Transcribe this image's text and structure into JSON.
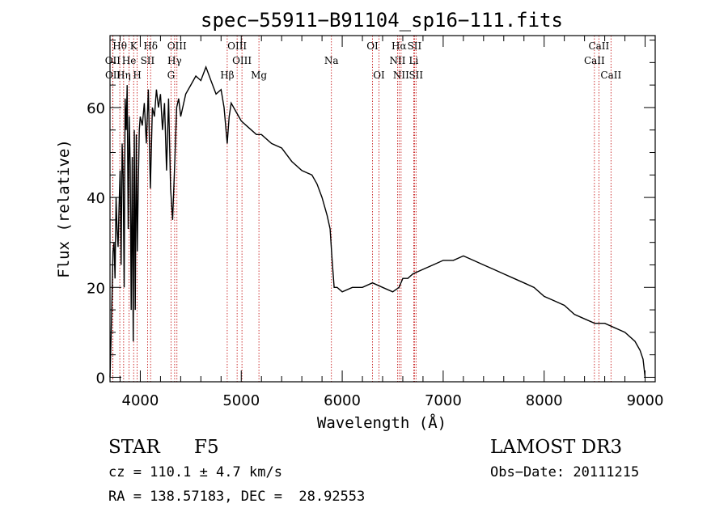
{
  "chart_data": {
    "type": "line",
    "title": "spec−55911−B91104_sp16−111.fits",
    "xlabel": "Wavelength (Å)",
    "ylabel": "Flux (relative)",
    "xlim": [
      3700,
      9100
    ],
    "ylim": [
      -1,
      76
    ],
    "x_ticks": [
      4000,
      5000,
      6000,
      7000,
      8000,
      9000
    ],
    "y_ticks": [
      0,
      20,
      40,
      60
    ],
    "line_color": "#c00000",
    "spectrum_color": "#000000",
    "series": [
      {
        "name": "spectrum",
        "x": [
          3700,
          3710,
          3720,
          3730,
          3740,
          3750,
          3760,
          3770,
          3780,
          3790,
          3800,
          3810,
          3820,
          3830,
          3840,
          3850,
          3860,
          3870,
          3880,
          3890,
          3900,
          3910,
          3920,
          3930,
          3940,
          3950,
          3960,
          3970,
          3980,
          3990,
          4000,
          4020,
          4040,
          4060,
          4080,
          4100,
          4120,
          4140,
          4160,
          4180,
          4200,
          4220,
          4240,
          4260,
          4280,
          4300,
          4320,
          4340,
          4360,
          4380,
          4400,
          4450,
          4500,
          4550,
          4600,
          4650,
          4700,
          4750,
          4800,
          4830,
          4861,
          4880,
          4900,
          4950,
          5000,
          5050,
          5100,
          5150,
          5200,
          5300,
          5400,
          5500,
          5600,
          5700,
          5750,
          5800,
          5850,
          5880,
          5900,
          5920,
          5950,
          6000,
          6100,
          6200,
          6300,
          6400,
          6500,
          6563,
          6600,
          6650,
          6700,
          6800,
          6900,
          7000,
          7100,
          7200,
          7300,
          7400,
          7500,
          7600,
          7700,
          7800,
          7900,
          8000,
          8100,
          8200,
          8300,
          8400,
          8500,
          8600,
          8700,
          8800,
          8900,
          8950,
          8980,
          9000
        ],
        "y": [
          0,
          8,
          18,
          28,
          30,
          22,
          40,
          33,
          29,
          38,
          46,
          25,
          52,
          45,
          20,
          62,
          55,
          65,
          33,
          58,
          47,
          15,
          49,
          8,
          55,
          15,
          54,
          28,
          42,
          55,
          58,
          56,
          61,
          52,
          64,
          42,
          60,
          58,
          64,
          60,
          63,
          55,
          61,
          46,
          62,
          42,
          35,
          47,
          60,
          62,
          58,
          63,
          65,
          67,
          66,
          69,
          66,
          63,
          64,
          60,
          52,
          58,
          61,
          59,
          57,
          56,
          55,
          54,
          54,
          52,
          51,
          48,
          46,
          45,
          43,
          40,
          36,
          33,
          26,
          20,
          20,
          19,
          20,
          20,
          21,
          20,
          19,
          20,
          22,
          22,
          23,
          24,
          25,
          26,
          26,
          27,
          26,
          25,
          24,
          23,
          22,
          21,
          20,
          18,
          17,
          16,
          14,
          13,
          12,
          12,
          11,
          10,
          8,
          6,
          4,
          0
        ]
      }
    ],
    "spectral_lines": [
      {
        "label": "Hθ",
        "x": 3797,
        "row": 0
      },
      {
        "label": "OII",
        "x": 3727,
        "row": 1
      },
      {
        "label": "OII",
        "x": 3729,
        "row": 2
      },
      {
        "label": "K",
        "x": 3934,
        "row": 0
      },
      {
        "label": "He",
        "x": 3889,
        "row": 1
      },
      {
        "label": "Hη",
        "x": 3835,
        "row": 2
      },
      {
        "label": "Hδ",
        "x": 4102,
        "row": 0
      },
      {
        "label": "SII",
        "x": 4072,
        "row": 1
      },
      {
        "label": "H",
        "x": 3969,
        "row": 2
      },
      {
        "label": "OIII",
        "x": 4363,
        "row": 0
      },
      {
        "label": "Hγ",
        "x": 4340,
        "row": 1
      },
      {
        "label": "G",
        "x": 4304,
        "row": 2
      },
      {
        "label": "Hβ",
        "x": 4861,
        "row": 2
      },
      {
        "label": "OIII",
        "x": 4959,
        "row": 0
      },
      {
        "label": "OIII",
        "x": 5007,
        "row": 1
      },
      {
        "label": "Mg",
        "x": 5175,
        "row": 2
      },
      {
        "label": "Na",
        "x": 5893,
        "row": 1
      },
      {
        "label": "OI",
        "x": 6300,
        "row": 0
      },
      {
        "label": "OI",
        "x": 6364,
        "row": 2
      },
      {
        "label": "Hα",
        "x": 6563,
        "row": 0
      },
      {
        "label": "NII",
        "x": 6548,
        "row": 1
      },
      {
        "label": "NII",
        "x": 6583,
        "row": 2
      },
      {
        "label": "SII",
        "x": 6716,
        "row": 0
      },
      {
        "label": "Li",
        "x": 6708,
        "row": 1
      },
      {
        "label": "SII",
        "x": 6731,
        "row": 2
      },
      {
        "label": "CaII",
        "x": 8542,
        "row": 0
      },
      {
        "label": "CaII",
        "x": 8498,
        "row": 1
      },
      {
        "label": "CaII",
        "x": 8662,
        "row": 2
      }
    ]
  },
  "info": {
    "object_class": "STAR",
    "subclass": "F5",
    "survey": "LAMOST DR3",
    "cz": "cz = 110.1 ± 4.7 km/s",
    "obs_date": "Obs−Date: 20111215",
    "coords": "RA = 138.57183, DEC =  28.92553"
  }
}
